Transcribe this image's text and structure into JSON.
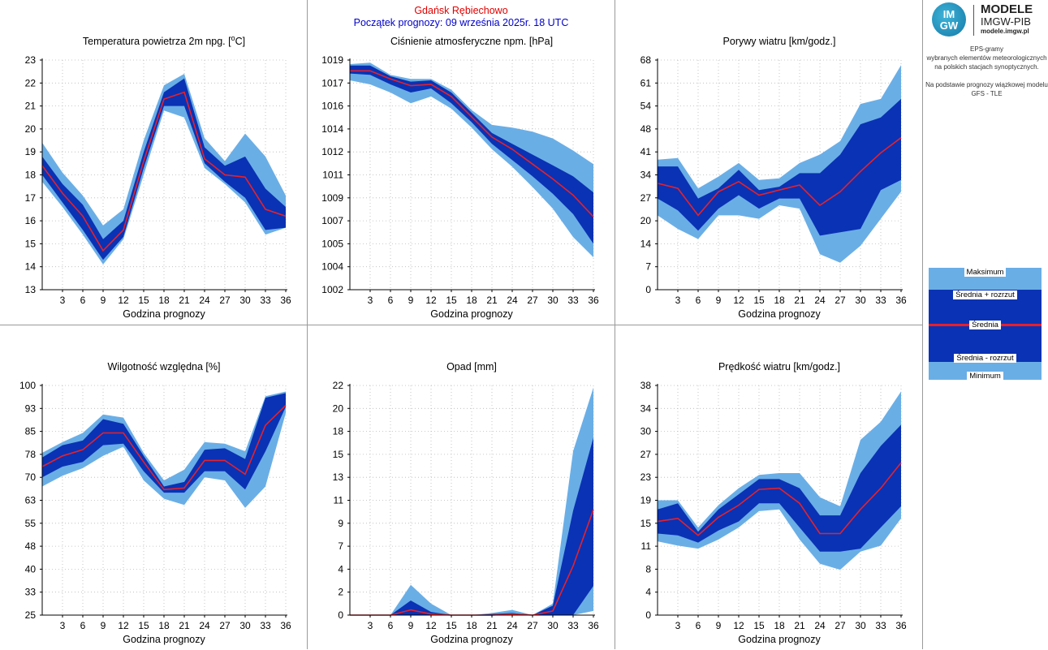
{
  "header": {
    "station": "Gdańsk Rębiechowo",
    "start": "Początek prognozy: 09 września 2025r. 18 UTC"
  },
  "logo": {
    "circle_top": "IM",
    "circle_bottom": "GW",
    "line1": "MODELE",
    "line2": "IMGW-PIB",
    "line3": "modele.imgw.pl"
  },
  "info": {
    "line1": "EPS-gramy",
    "line2": "wybranych elementów meteorologicznych",
    "line3": "na polskich stacjach  synoptycznych.",
    "line4": "Na podstawie prognozy wiązkowej modelu",
    "line5": "GFS - TLE"
  },
  "legend": {
    "max": "Maksimum",
    "plus": "Średnia + rozrzut",
    "mean": "Średnia",
    "minus": "Średnia - rozrzut",
    "min": "Minimum"
  },
  "colors": {
    "outer": "#6aaee6",
    "inner": "#0a32b4",
    "mean": "#e8202a",
    "grid": "#b8b8b8"
  },
  "chart_data": [
    {
      "id": "temp",
      "type": "area",
      "title": "Temperatura powietrza 2m npg. [°C]",
      "xlabel": "Godzina prognozy",
      "x": [
        0,
        3,
        6,
        9,
        12,
        15,
        18,
        21,
        24,
        27,
        30,
        33,
        36
      ],
      "xlim": [
        0,
        36
      ],
      "ylim": [
        13,
        23
      ],
      "yticks": [
        "13",
        "14",
        "15",
        "16",
        "17",
        "18",
        "19",
        "20",
        "21",
        "22",
        "23"
      ],
      "ytick_values": [
        13,
        14,
        15,
        16,
        17,
        18,
        19,
        20,
        21,
        22,
        23
      ],
      "xticks": [
        "3",
        "6",
        "9",
        "12",
        "15",
        "18",
        "21",
        "24",
        "27",
        "30",
        "33",
        "36"
      ],
      "min": [
        17.7,
        16.6,
        15.4,
        14.1,
        15.2,
        18.0,
        20.8,
        20.5,
        18.3,
        17.6,
        16.8,
        15.4,
        15.7
      ],
      "minus": [
        18.0,
        16.8,
        15.6,
        14.3,
        15.3,
        18.3,
        21.0,
        21.0,
        18.5,
        17.7,
        17.0,
        15.6,
        15.7
      ],
      "mean": [
        18.4,
        17.2,
        16.2,
        14.7,
        15.6,
        18.6,
        21.3,
        21.6,
        18.7,
        18.0,
        17.9,
        16.5,
        16.2
      ],
      "plus": [
        18.8,
        17.6,
        16.7,
        15.2,
        16.0,
        19.0,
        21.6,
        22.2,
        19.2,
        18.4,
        18.8,
        17.4,
        16.6
      ],
      "max": [
        19.4,
        18.1,
        17.1,
        15.8,
        16.5,
        19.5,
        21.9,
        22.4,
        19.6,
        18.6,
        19.8,
        18.8,
        17.1
      ]
    },
    {
      "id": "pres",
      "type": "area",
      "title": "Ciśnienie atmosferyczne npm. [hPa]",
      "xlabel": "Godzina prognozy",
      "x": [
        0,
        3,
        6,
        9,
        12,
        15,
        18,
        21,
        24,
        27,
        30,
        33,
        36
      ],
      "xlim": [
        0,
        36
      ],
      "ylim": [
        1002,
        1019
      ],
      "yticks": [
        "1002",
        "1004",
        "1005",
        "1007",
        "1009",
        "1011",
        "1012",
        "1014",
        "1016",
        "1017",
        "1019"
      ],
      "ytick_values": [
        1002,
        1003.7,
        1005.4,
        1007.1,
        1008.8,
        1010.5,
        1012.2,
        1013.9,
        1015.6,
        1017.3,
        1019
      ],
      "xticks": [
        "3",
        "6",
        "9",
        "12",
        "15",
        "18",
        "21",
        "24",
        "27",
        "30",
        "33",
        "36"
      ],
      "min": [
        1017.5,
        1017.2,
        1016.6,
        1015.8,
        1016.3,
        1015.4,
        1014.0,
        1012.4,
        1011.1,
        1009.6,
        1008.0,
        1005.9,
        1004.4
      ],
      "minus": [
        1018.0,
        1017.9,
        1017.2,
        1016.6,
        1016.9,
        1015.8,
        1014.4,
        1012.8,
        1011.6,
        1010.4,
        1009.1,
        1007.6,
        1005.4
      ],
      "mean": [
        1018.2,
        1018.2,
        1017.6,
        1017.1,
        1017.2,
        1016.3,
        1014.8,
        1013.3,
        1012.4,
        1011.3,
        1010.2,
        1009.0,
        1007.4
      ],
      "plus": [
        1018.6,
        1018.6,
        1017.8,
        1017.4,
        1017.5,
        1016.6,
        1015.1,
        1013.6,
        1012.8,
        1012.0,
        1011.2,
        1010.4,
        1009.2
      ],
      "max": [
        1018.7,
        1018.8,
        1017.9,
        1017.6,
        1017.6,
        1016.8,
        1015.3,
        1014.2,
        1014.0,
        1013.7,
        1013.2,
        1012.3,
        1011.3
      ]
    },
    {
      "id": "gust",
      "type": "area",
      "title": "Porywy wiatru [km/godz.]",
      "xlabel": "Godzina prognozy",
      "x": [
        0,
        3,
        6,
        9,
        12,
        15,
        18,
        21,
        24,
        27,
        30,
        33,
        36
      ],
      "xlim": [
        0,
        36
      ],
      "ylim": [
        0,
        68
      ],
      "yticks": [
        "0",
        "7",
        "14",
        "20",
        "27",
        "34",
        "41",
        "48",
        "54",
        "61",
        "68"
      ],
      "ytick_values": [
        0,
        6.8,
        13.6,
        20.4,
        27.2,
        34,
        40.8,
        47.6,
        54.4,
        61.2,
        68
      ],
      "xticks": [
        "3",
        "6",
        "9",
        "12",
        "15",
        "18",
        "21",
        "24",
        "27",
        "30",
        "33",
        "36"
      ],
      "min": [
        22,
        18,
        15,
        22,
        22,
        21,
        25,
        24,
        10.5,
        8,
        13,
        21,
        29
      ],
      "minus": [
        27,
        23.5,
        17.5,
        24,
        28,
        24,
        27,
        27,
        16,
        17,
        18,
        29.5,
        32.5
      ],
      "mean": [
        31.5,
        30,
        22,
        29,
        32,
        28,
        29.5,
        31,
        25,
        29,
        35,
        40.5,
        45
      ],
      "plus": [
        36.5,
        36.5,
        27,
        30,
        35.5,
        29.5,
        30.5,
        34.5,
        34.5,
        40,
        49,
        51,
        56.5
      ],
      "max": [
        38.5,
        39,
        30,
        33.5,
        37.5,
        32.5,
        33,
        37.5,
        40,
        44,
        55,
        56.5,
        66.5
      ]
    },
    {
      "id": "hum",
      "type": "area",
      "title": "Wilgotność względna [%]",
      "xlabel": "Godzina prognozy",
      "x": [
        0,
        3,
        6,
        9,
        12,
        15,
        18,
        21,
        24,
        27,
        30,
        33,
        36
      ],
      "xlim": [
        0,
        36
      ],
      "ylim": [
        25,
        100
      ],
      "yticks": [
        "25",
        "33",
        "40",
        "48",
        "55",
        "63",
        "70",
        "78",
        "85",
        "93",
        "100"
      ],
      "ytick_values": [
        25,
        32.5,
        40,
        47.5,
        55,
        62.5,
        70,
        77.5,
        85,
        92.5,
        100
      ],
      "xticks": [
        "3",
        "6",
        "9",
        "12",
        "15",
        "18",
        "21",
        "24",
        "27",
        "30",
        "33",
        "36"
      ],
      "min": [
        67,
        70.5,
        73,
        77,
        80,
        69,
        63,
        61,
        70,
        69,
        60,
        67,
        91
      ],
      "minus": [
        70,
        73.5,
        75,
        80.5,
        81,
        72,
        65,
        65,
        72,
        72,
        66,
        78.5,
        93
      ],
      "mean": [
        73.5,
        77,
        79,
        84.5,
        84.5,
        75,
        66,
        66.5,
        75.5,
        75.5,
        71,
        87,
        93.5
      ],
      "plus": [
        76.5,
        80.5,
        82,
        89,
        87.5,
        77,
        67,
        68.5,
        79,
        79.5,
        76,
        96,
        97.5
      ],
      "max": [
        78,
        81.5,
        84.5,
        90.5,
        89.5,
        78,
        69,
        72.5,
        81.5,
        81,
        78.5,
        96.5,
        98
      ]
    },
    {
      "id": "precip",
      "type": "area",
      "title": "Opad [mm]",
      "xlabel": "Godzina prognozy",
      "x": [
        0,
        3,
        6,
        9,
        12,
        15,
        18,
        21,
        24,
        27,
        30,
        33,
        36
      ],
      "xlim": [
        0,
        36
      ],
      "ylim": [
        0,
        22
      ],
      "yticks": [
        "0",
        "2",
        "4",
        "7",
        "9",
        "11",
        "13",
        "15",
        "18",
        "20",
        "22"
      ],
      "ytick_values": [
        0,
        2.2,
        4.4,
        6.6,
        8.8,
        11,
        13.2,
        15.4,
        17.6,
        19.8,
        22
      ],
      "xticks": [
        "3",
        "6",
        "9",
        "12",
        "15",
        "18",
        "21",
        "24",
        "27",
        "30",
        "33",
        "36"
      ],
      "min": [
        0,
        0,
        0,
        0,
        0,
        0,
        0,
        0,
        0,
        0,
        0,
        0,
        0.4
      ],
      "minus": [
        0,
        0,
        0,
        0,
        0,
        0,
        0,
        0,
        0,
        0,
        0,
        0,
        2.8
      ],
      "mean": [
        0,
        0,
        0,
        0.5,
        0.1,
        0,
        0,
        0,
        0.1,
        0,
        0.4,
        4.7,
        10.1
      ],
      "plus": [
        0,
        0,
        0,
        1.4,
        0.3,
        0,
        0,
        0.1,
        0.2,
        0,
        0.9,
        10,
        17
      ],
      "max": [
        0,
        0,
        0,
        2.9,
        1.1,
        0,
        0,
        0.2,
        0.5,
        0,
        1.1,
        15.7,
        21.8
      ]
    },
    {
      "id": "wind",
      "type": "area",
      "title": "Prędkość wiatru [km/godz.]",
      "xlabel": "Godzina prognozy",
      "x": [
        0,
        3,
        6,
        9,
        12,
        15,
        18,
        21,
        24,
        27,
        30,
        33,
        36
      ],
      "xlim": [
        0,
        36
      ],
      "ylim": [
        0,
        38
      ],
      "yticks": [
        "0",
        "4",
        "8",
        "11",
        "15",
        "19",
        "23",
        "27",
        "30",
        "34",
        "38"
      ],
      "ytick_values": [
        0,
        3.8,
        7.6,
        11.4,
        15.2,
        19,
        22.8,
        26.6,
        30.4,
        34.2,
        38
      ],
      "xticks": [
        "3",
        "6",
        "9",
        "12",
        "15",
        "18",
        "21",
        "24",
        "27",
        "30",
        "33",
        "36"
      ],
      "min": [
        12.2,
        11.5,
        11.0,
        12.5,
        14.5,
        17.2,
        17.5,
        12.5,
        8.5,
        7.5,
        10.5,
        11.5,
        16
      ],
      "minus": [
        13.5,
        13.2,
        12.0,
        14.0,
        15.5,
        18.5,
        18.5,
        14.5,
        10.5,
        10.5,
        11,
        14.5,
        18
      ],
      "mean": [
        15.5,
        16,
        13.2,
        16.2,
        18.2,
        20.8,
        21.0,
        18.5,
        13.5,
        13.5,
        17.5,
        21,
        25.2
      ],
      "plus": [
        17.5,
        18.5,
        13.8,
        17.5,
        20.0,
        22.5,
        22.5,
        21.0,
        16.5,
        16.5,
        23.5,
        28,
        31.5
      ],
      "max": [
        19,
        19,
        14.5,
        18.2,
        21.0,
        23.2,
        23.5,
        23.5,
        19.5,
        18,
        29,
        32,
        37
      ]
    }
  ]
}
